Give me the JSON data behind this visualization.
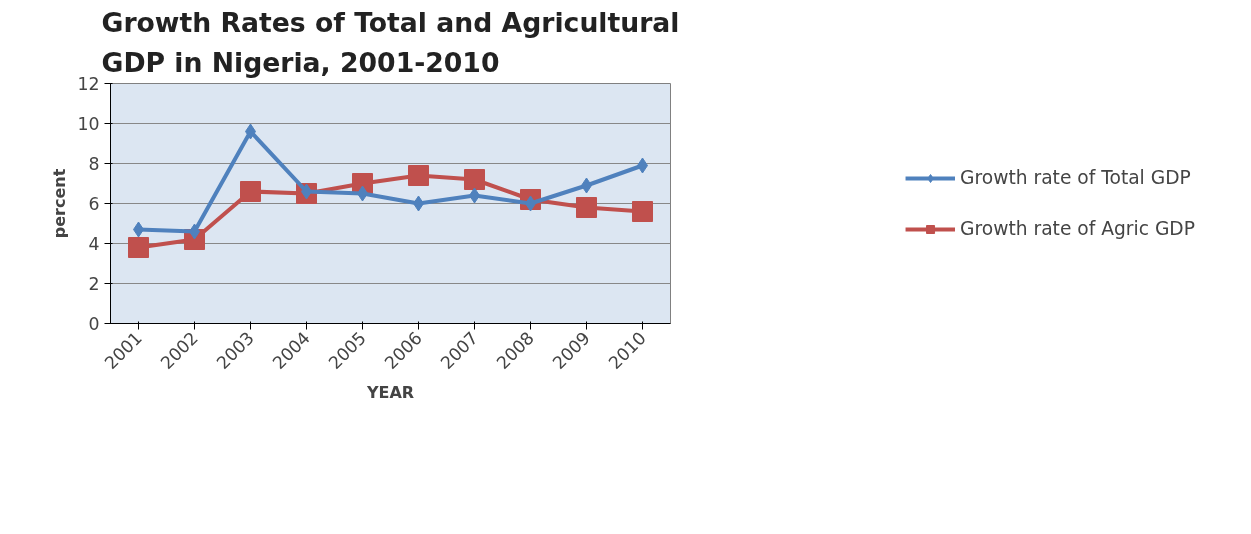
{
  "chart_data": {
    "type": "line",
    "title": "Growth Rates of Total and Agricultural GDP in Nigeria, 2001-2010",
    "xlabel": "YEAR",
    "ylabel": "percent",
    "categories": [
      "2001",
      "2002",
      "2003",
      "2004",
      "2005",
      "2006",
      "2007",
      "2008",
      "2009",
      "2010"
    ],
    "series": [
      {
        "name": "Growth rate of Total GDP",
        "color": "#4f81bd",
        "marker": "diamond",
        "values": [
          4.7,
          4.6,
          9.6,
          6.6,
          6.5,
          6.0,
          6.4,
          6.0,
          6.9,
          7.9
        ]
      },
      {
        "name": "Growth rate of Agric GDP",
        "color": "#c0504d",
        "marker": "square",
        "values": [
          3.8,
          4.2,
          6.6,
          6.5,
          7.0,
          7.4,
          7.2,
          6.2,
          5.8,
          5.6
        ]
      }
    ],
    "ylim": [
      0,
      12
    ],
    "yticks": [
      0,
      2,
      4,
      6,
      8,
      10,
      12
    ],
    "grid": "y",
    "legend": "right",
    "line_style": "solid"
  }
}
